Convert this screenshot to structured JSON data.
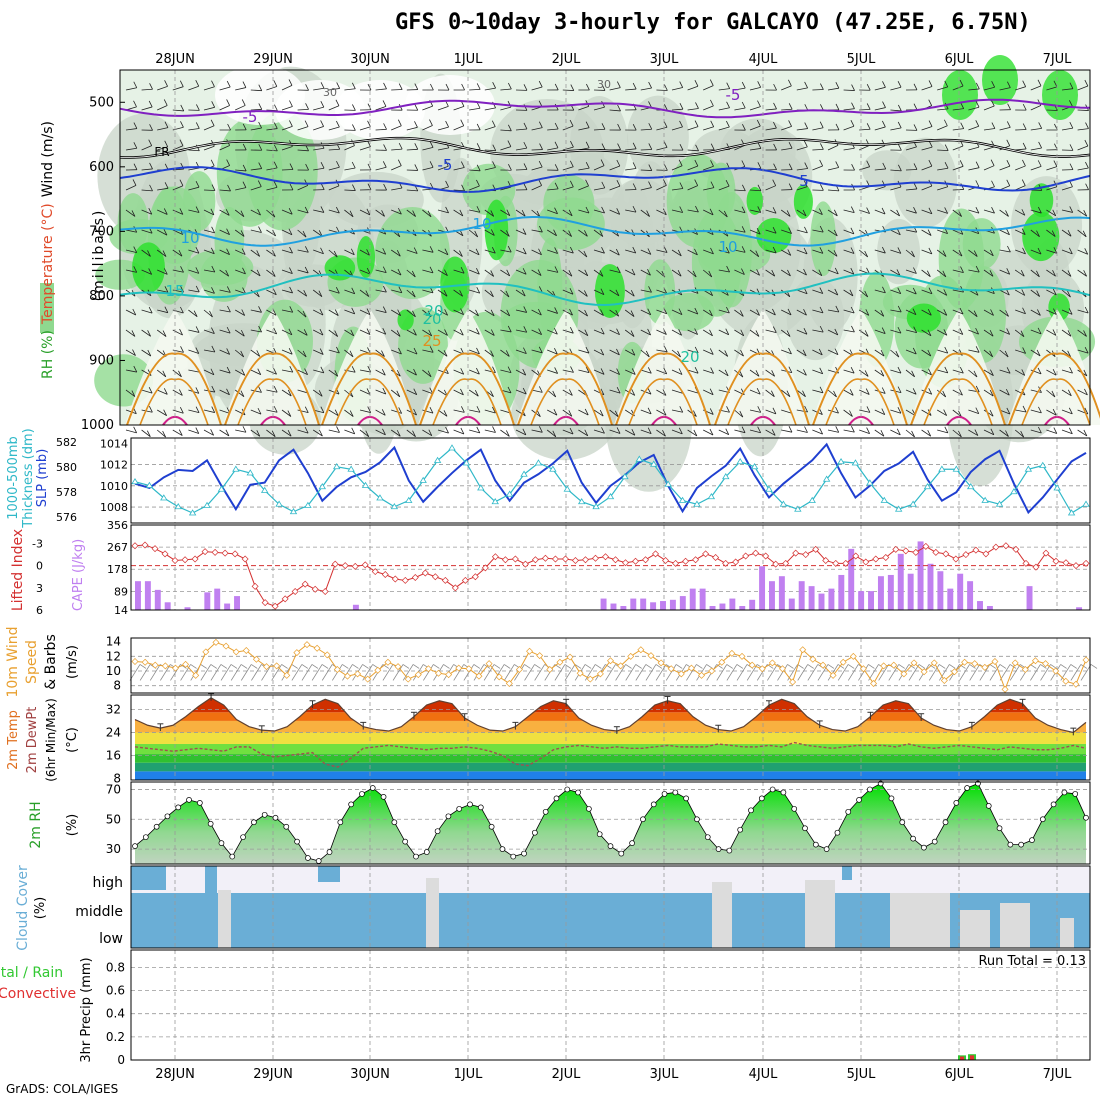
{
  "title": "GFS 0~10day 3-hourly for GALCAYO (47.25E, 6.75N)",
  "footer": "GrADS: COLA/IGES",
  "days": [
    "28JUN",
    "29JUN",
    "30JUN",
    "1JUL",
    "2JUL",
    "3JUL",
    "4JUL",
    "5JUL",
    "6JUL",
    "7JUL"
  ],
  "colors": {
    "rh_light": "#e6f2e6",
    "rh_mid": "#c8d4c8",
    "rh_green": "#8fd98f",
    "rh_bright": "#2ee02e",
    "slp": "#1f3fd0",
    "thickness": "#2fb8c8",
    "lifted_index": "#d43030",
    "cape": "#c080f0",
    "wind": "#e8a030",
    "cloud": "#6aaed6",
    "precip_total": "#32c832",
    "precip_conv": "#e03030"
  },
  "chart_data": [
    {
      "type": "heatmap",
      "panel": "vertical_profile",
      "ylabel_parts": [
        "RH (%)",
        "Temperature (°C)",
        "Wind (m/s)"
      ],
      "yunit": "(millibars)",
      "yticks": [
        "500",
        "600",
        "700",
        "800",
        "900",
        "1000"
      ],
      "ylim": [
        1000,
        450
      ],
      "temperature_contours": [
        {
          "label": "-5",
          "level_mb": 510,
          "color": "#8020c0"
        },
        {
          "label": "FR",
          "level_mb": 570,
          "color": "#000000"
        },
        {
          "label": "-5",
          "level_mb": 620,
          "color": "#1f3fd0"
        },
        {
          "label": "10",
          "level_mb": 700,
          "color": "#20a0e0"
        },
        {
          "label": "15",
          "level_mb": 790,
          "color": "#20c0c0"
        },
        {
          "label": "20",
          "level_mb": 860,
          "color": "#20c0a0"
        },
        {
          "label": "25",
          "level_mb": 920,
          "color": "#e09020"
        }
      ],
      "other_labels": [
        "30",
        "30",
        "-5",
        "5",
        "10",
        "10",
        "20",
        "20"
      ]
    },
    {
      "type": "line",
      "panel": "slp_thickness",
      "ylabel_left": "1000-500mb Thickness (dm)",
      "ylabel_right": "SLP (mb)",
      "left_ticks": [
        "582",
        "580",
        "578",
        "576"
      ],
      "right_ticks": [
        "1014",
        "1012",
        "1010",
        "1008"
      ],
      "series": [
        {
          "name": "SLP (mb)",
          "axis": "right",
          "values": [
            1010.2,
            1009.8,
            1010.8,
            1011.5,
            1011.4,
            1012.4,
            1010.0,
            1007.8,
            1010.1,
            1010.3,
            1012.4,
            1013.4,
            1011.2,
            1008.6,
            1009.9,
            1010.8,
            1011.3,
            1012.2,
            1013.6,
            1010.5,
            1008.5,
            1009.9,
            1011.2,
            1012.4,
            1013.4,
            1010.5,
            1008.6,
            1010.3,
            1011.1,
            1012.1,
            1013.3,
            1010.3,
            1008.4,
            1010.0,
            1011.0,
            1012.2,
            1012.9,
            1010.0,
            1007.6,
            1009.8,
            1010.9,
            1011.9,
            1013.5,
            1011.0,
            1008.9,
            1010.2,
            1011.3,
            1012.4,
            1013.9,
            1011.2,
            1008.9,
            1010.0,
            1011.4,
            1012.1,
            1013.2,
            1010.6,
            1008.6,
            1009.4,
            1011.3,
            1012.5,
            1013.3,
            1010.2,
            1007.5,
            1008.9,
            1010.6,
            1012.3,
            1013.1
          ]
        },
        {
          "name": "1000-500mb Thickness (dm)",
          "axis": "left",
          "values": [
            578.8,
            578.5,
            577.5,
            576.8,
            576.3,
            576.9,
            578.2,
            579.8,
            579.5,
            578.1,
            577.0,
            576.4,
            576.9,
            578.4,
            580.0,
            579.8,
            578.5,
            577.5,
            576.8,
            577.3,
            578.9,
            580.5,
            581.5,
            580.3,
            578.3,
            577.2,
            577.8,
            579.4,
            580.3,
            579.8,
            578.2,
            577.2,
            576.8,
            577.6,
            579.2,
            580.6,
            580.2,
            578.6,
            577.3,
            577.0,
            577.6,
            579.2,
            580.4,
            580.0,
            578.2,
            577.0,
            576.6,
            577.3,
            579.0,
            580.4,
            580.3,
            578.7,
            577.3,
            576.6,
            577.0,
            578.4,
            579.8,
            579.8,
            578.4,
            577.3,
            577.0,
            578.0,
            579.8,
            580.1,
            578.3,
            576.3,
            577.0
          ]
        }
      ]
    },
    {
      "type": "bar",
      "panel": "cape_lifted_index",
      "ylabel_left": "Lifted Index",
      "ylabel_right": "CAPE (J/kg)",
      "left_ticks": [
        "-3",
        "0",
        "3",
        "6"
      ],
      "right_ticks": [
        "356",
        "267",
        "178",
        "89",
        "14"
      ],
      "series": [
        {
          "name": "CAPE (J/kg)",
          "values": [
            130,
            130,
            95,
            45,
            0,
            25,
            0,
            85,
            100,
            40,
            70,
            0,
            0,
            0,
            0,
            0,
            0,
            0,
            0,
            0,
            0,
            0,
            35,
            0,
            0,
            0,
            0,
            0,
            0,
            0,
            0,
            0,
            0,
            0,
            0,
            0,
            0,
            0,
            0,
            0,
            0,
            0,
            0,
            0,
            0,
            0,
            0,
            60,
            40,
            30,
            60,
            60,
            45,
            50,
            55,
            70,
            100,
            100,
            30,
            40,
            60,
            30,
            55,
            190,
            130,
            150,
            60,
            130,
            110,
            80,
            100,
            155,
            260,
            90,
            90,
            150,
            155,
            240,
            160,
            290,
            200,
            170,
            100,
            160,
            130,
            50,
            30,
            0,
            0,
            0,
            110,
            0,
            0,
            0,
            0,
            25
          ]
        },
        {
          "name": "Lifted Index",
          "values": [
            -2.7,
            -2.8,
            -2.3,
            -1.6,
            -0.7,
            -0.8,
            -0.9,
            -1.9,
            -1.8,
            -1.7,
            -1.6,
            -0.9,
            2.8,
            5.0,
            5.5,
            4.5,
            3.5,
            2.5,
            3.2,
            3.5,
            -0.2,
            0.0,
            0.1,
            -0.1,
            0.8,
            1.2,
            1.8,
            2.0,
            1.6,
            1.0,
            1.5,
            2.0,
            3.0,
            2.0,
            1.5,
            0.3,
            -1.2,
            -0.8,
            -0.9,
            -0.2,
            -0.8,
            -1.0,
            -0.9,
            -0.9,
            -0.7,
            -0.8,
            -1.0,
            -1.2,
            -0.8,
            -0.4,
            -0.6,
            -0.8,
            -1.6,
            -0.7,
            -0.3,
            -0.6,
            -0.8,
            -1.6,
            -1.1,
            -0.3,
            -0.5,
            -1.3,
            -1.7,
            -1.3,
            -0.2,
            -0.3,
            -1.7,
            -1.5,
            -2.2,
            -0.7,
            -0.3,
            -0.3,
            -1.3,
            -0.5,
            -0.9,
            -1.1,
            -2.2,
            -2.0,
            -1.8,
            -2.6,
            -1.8,
            -1.6,
            -0.9,
            -1.5,
            -2.1,
            -1.6,
            -2.5,
            -2.7,
            -2.2,
            -0.3,
            0.2,
            -1.7,
            -0.6,
            -0.4,
            0.0,
            -0.3
          ]
        }
      ]
    },
    {
      "type": "line",
      "panel": "wind10m",
      "ylabel": "10m Wind Speed & Barbs (m/s)",
      "yticks": [
        "14",
        "12",
        "10",
        "8"
      ],
      "ylim": [
        7,
        14.5
      ],
      "series": [
        {
          "name": "10m Wind Speed (m/s)",
          "values": [
            11.3,
            11.2,
            10.8,
            10.7,
            10.4,
            10.9,
            9.4,
            12.6,
            13.9,
            13.4,
            12.6,
            12.8,
            11.6,
            10.6,
            10.7,
            9.4,
            12.5,
            13.6,
            13.1,
            12.2,
            10.2,
            9.3,
            9.6,
            8.9,
            10.1,
            11.2,
            10.6,
            8.9,
            9.5,
            10.3,
            9.7,
            9.5,
            10.4,
            10.3,
            9.3,
            11.0,
            9.2,
            8.3,
            10.2,
            12.7,
            12.1,
            10.2,
            11.2,
            11.9,
            9.7,
            8.9,
            9.6,
            11.4,
            10.7,
            12.0,
            12.9,
            12.1,
            11.1,
            10.3,
            9.6,
            10.4,
            9.4,
            10.0,
            11.2,
            12.4,
            12.0,
            10.8,
            10.3,
            11.1,
            10.3,
            8.5,
            12.9,
            11.6,
            10.8,
            9.4,
            11.2,
            12.0,
            10.3,
            8.3,
            10.7,
            10.8,
            9.6,
            11.1,
            9.9,
            11.1,
            8.7,
            9.9,
            11.2,
            11.0,
            10.5,
            11.3,
            7.5,
            11.1,
            10.2,
            11.4,
            11.0,
            10.0,
            8.6,
            8.2,
            11.5
          ]
        }
      ]
    },
    {
      "type": "area",
      "panel": "temp2m",
      "ylabel": "2m Temp 2m DewPt (6hr Min/Max) (°C)",
      "yticks": [
        "32",
        "24",
        "16",
        "8"
      ],
      "ylim": [
        7.5,
        37
      ],
      "series": [
        {
          "name": "2m Temp",
          "values": [
            28.5,
            26.5,
            25.5,
            26.5,
            29.5,
            33.0,
            36.0,
            33.5,
            28.5,
            26.0,
            24.8,
            24.5,
            26.0,
            29.5,
            33.5,
            35.5,
            34.0,
            29.0,
            26.0,
            25.0,
            24.5,
            26.0,
            29.5,
            33.5,
            35.0,
            34.0,
            29.0,
            26.5,
            24.8,
            24.5,
            26.0,
            29.5,
            33.0,
            35.0,
            34.0,
            29.0,
            26.5,
            25.0,
            24.5,
            26.0,
            29.5,
            33.5,
            35.0,
            34.0,
            29.5,
            26.5,
            25.0,
            24.5,
            26.0,
            29.5,
            33.5,
            35.5,
            34.0,
            29.5,
            26.5,
            25.0,
            24.5,
            26.0,
            29.5,
            33.5,
            35.0,
            34.0,
            29.0,
            26.5,
            25.0,
            24.5,
            26.0,
            29.5,
            33.5,
            35.5,
            34.0,
            29.0,
            26.5,
            25.0,
            24.0,
            27.5
          ]
        },
        {
          "name": "2m DewPt",
          "values": [
            19.0,
            18.5,
            18.0,
            17.5,
            18.0,
            18.5,
            18.0,
            17.5,
            19.0,
            19.0,
            16.5,
            15.5,
            16.0,
            16.5,
            17.0,
            13.0,
            12.0,
            15.0,
            18.5,
            19.0,
            19.5,
            19.0,
            18.5,
            18.0,
            18.5,
            18.5,
            19.0,
            18.5,
            17.5,
            16.0,
            13.0,
            12.5,
            15.0,
            18.0,
            19.0,
            19.5,
            19.0,
            18.5,
            19.0,
            18.5,
            18.5,
            19.0,
            19.5,
            19.0,
            19.0,
            19.0,
            20.0,
            19.5,
            19.0,
            19.0,
            19.5,
            19.0,
            20.5,
            19.5,
            19.0,
            18.5,
            19.0,
            19.5,
            19.5,
            19.5,
            19.0,
            20.0,
            19.0,
            18.5,
            19.0,
            19.5,
            19.0,
            18.5,
            18.0,
            19.0,
            18.5,
            18.0,
            18.0,
            18.5,
            19.5,
            18.5
          ]
        }
      ]
    },
    {
      "type": "area",
      "panel": "rh2m",
      "ylabel": "2m RH (%)",
      "yticks": [
        "70",
        "50",
        "30"
      ],
      "ylim": [
        20,
        75
      ],
      "series": [
        {
          "name": "2m RH (%)",
          "values": [
            32,
            38,
            45,
            52,
            58,
            63,
            61,
            47,
            34,
            25,
            38,
            48,
            53,
            51,
            45,
            35,
            24,
            22,
            28,
            48,
            60,
            67,
            71,
            65,
            48,
            35,
            25,
            28,
            42,
            52,
            57,
            60,
            58,
            45,
            30,
            25,
            27,
            41,
            55,
            64,
            70,
            68,
            57,
            40,
            32,
            27,
            34,
            50,
            60,
            67,
            68,
            64,
            50,
            38,
            30,
            29,
            43,
            56,
            64,
            70,
            68,
            57,
            44,
            33,
            30,
            41,
            55,
            63,
            70,
            74,
            64,
            48,
            37,
            31,
            35,
            48,
            61,
            71,
            74,
            59,
            44,
            33,
            33,
            36,
            50,
            60,
            68,
            67,
            51
          ]
        }
      ]
    },
    {
      "type": "heatmap",
      "panel": "cloud_cover",
      "ylabel": "Cloud Cover (%)",
      "row_labels": [
        "high",
        "middle",
        "low"
      ]
    },
    {
      "type": "bar",
      "panel": "precip3hr",
      "ylabel": "3hr Precip (mm)",
      "ylabel_total": "Total / Rain",
      "ylabel_conv": "Convective",
      "run_total": "Run Total = 0.13",
      "yticks": [
        "0.8",
        "0.6",
        "0.4",
        "0.2",
        "0"
      ],
      "ylim": [
        0,
        0.95
      ],
      "series": [
        {
          "name": "Total / Rain",
          "values": [
            0.04,
            0.05
          ]
        },
        {
          "name": "Convective",
          "values": [
            0.03,
            0.04
          ]
        }
      ],
      "bar_time_labels": [
        "6JUL",
        "6JUL"
      ]
    }
  ]
}
